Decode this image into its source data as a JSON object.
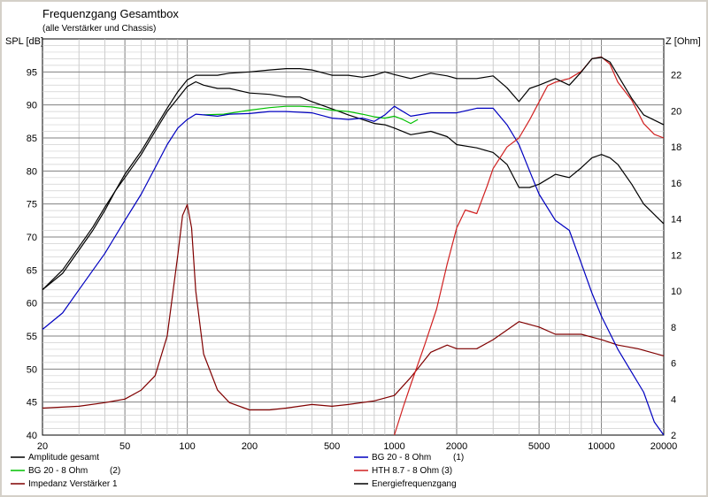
{
  "chart_data": {
    "type": "line",
    "title": "Frequenzgang Gesamtbox",
    "subtitle": "(alle Verstärker und Chassis)",
    "ylabel_left": "SPL [dB]",
    "ylabel_right": "Z [Ohm]",
    "xlim": [
      20,
      20000
    ],
    "x_scale": "log",
    "ylim_left": [
      40,
      100
    ],
    "ylim_right": [
      2,
      24
    ],
    "grid": true,
    "x_ticks": [
      20,
      50,
      100,
      200,
      500,
      1000,
      2000,
      5000,
      10000,
      20000
    ],
    "x_tick_labels": [
      "20",
      "50",
      "100",
      "200",
      "500",
      "1000",
      "2000",
      "5000",
      "10000",
      "20000"
    ],
    "y_ticks_left": [
      40,
      45,
      50,
      55,
      60,
      65,
      70,
      75,
      80,
      85,
      90,
      95
    ],
    "y_ticks_right": [
      2,
      4,
      6,
      8,
      10,
      12,
      14,
      16,
      18,
      20,
      22
    ],
    "legend_position": "bottom",
    "series": [
      {
        "name": "Amplitude gesamt",
        "legend_extra": "",
        "color": "#000000",
        "axis": "left",
        "x": [
          20,
          25,
          30,
          35,
          40,
          45,
          50,
          60,
          70,
          80,
          90,
          100,
          110,
          120,
          140,
          160,
          200,
          250,
          300,
          350,
          400,
          500,
          600,
          700,
          800,
          900,
          1000,
          1200,
          1500,
          1800,
          2000,
          2500,
          3000,
          3500,
          4000,
          4500,
          5000,
          6000,
          7000,
          8000,
          9000,
          10000,
          11000,
          12000,
          14000,
          16000,
          20000
        ],
        "y": [
          62,
          65,
          68.5,
          71.5,
          74.5,
          77,
          79,
          82.5,
          86,
          89,
          91,
          92.8,
          93.5,
          93,
          92.5,
          92.5,
          91.8,
          91.6,
          91.2,
          91.2,
          90.5,
          89.4,
          88.5,
          87.8,
          87.2,
          87,
          86.5,
          85.5,
          86,
          85.2,
          84,
          83.5,
          82.8,
          81,
          77.5,
          77.5,
          78,
          79.5,
          79,
          80.5,
          82,
          82.5,
          82,
          81,
          78,
          75,
          72
        ]
      },
      {
        "name": "BG 20 - 8 Ohm",
        "legend_extra": "(2)",
        "color": "#00c000",
        "axis": "left",
        "x": [
          120,
          150,
          200,
          250,
          300,
          350,
          400,
          500,
          600,
          700,
          800,
          900,
          1000,
          1100,
          1200,
          1300
        ],
        "y": [
          88.5,
          88.6,
          89.2,
          89.6,
          89.8,
          89.8,
          89.7,
          89.2,
          89.0,
          88.6,
          88.2,
          88.0,
          88.3,
          87.8,
          87.2,
          87.8
        ]
      },
      {
        "name": "Impedanz Verstärker 1",
        "legend_extra": "",
        "color": "#800000",
        "axis": "right",
        "x": [
          20,
          30,
          40,
          50,
          60,
          70,
          80,
          90,
          95,
          100,
          105,
          110,
          120,
          140,
          160,
          200,
          250,
          300,
          400,
          500,
          600,
          800,
          1000,
          1200,
          1500,
          1800,
          2000,
          2500,
          3000,
          4000,
          5000,
          6000,
          8000,
          10000,
          12000,
          15000,
          20000
        ],
        "y": [
          3.5,
          3.6,
          3.8,
          4.0,
          4.5,
          5.3,
          7.5,
          12.0,
          14.2,
          14.8,
          13.5,
          10.0,
          6.5,
          4.5,
          3.8,
          3.4,
          3.4,
          3.5,
          3.7,
          3.6,
          3.7,
          3.9,
          4.2,
          5.2,
          6.6,
          7.0,
          6.8,
          6.8,
          7.3,
          8.3,
          8.0,
          7.6,
          7.6,
          7.3,
          7.0,
          6.8,
          6.4
        ]
      },
      {
        "name": "BG 20 - 8 Ohm",
        "legend_extra": "(1)",
        "color": "#0000c0",
        "axis": "left",
        "x": [
          20,
          25,
          30,
          40,
          50,
          60,
          70,
          80,
          90,
          100,
          110,
          120,
          140,
          160,
          200,
          250,
          300,
          400,
          500,
          600,
          700,
          800,
          900,
          1000,
          1200,
          1500,
          2000,
          2500,
          3000,
          3500,
          4000,
          4500,
          5000,
          6000,
          7000,
          8000,
          9000,
          10000,
          12000,
          14000,
          16000,
          18000,
          20000
        ],
        "y": [
          56,
          58.5,
          62,
          67.5,
          72.5,
          76.5,
          80.5,
          84,
          86.5,
          87.8,
          88.6,
          88.5,
          88.3,
          88.6,
          88.7,
          89.0,
          89.0,
          88.8,
          88.0,
          87.8,
          88.0,
          87.5,
          88.5,
          89.8,
          88.3,
          88.8,
          88.8,
          89.5,
          89.5,
          87.0,
          84.0,
          80.0,
          76.5,
          72.5,
          71.0,
          66.0,
          61.5,
          58.0,
          53.0,
          49.5,
          46.5,
          42.0,
          40
        ]
      },
      {
        "name": "HTH 8.7 - 8 Ohm (3)",
        "legend_extra": "",
        "color": "#d02020",
        "axis": "right",
        "x": [
          1000,
          1100,
          1200,
          1400,
          1600,
          1800,
          2000,
          2200,
          2500,
          2800,
          3000,
          3500,
          4000,
          4500,
          5000,
          5500,
          6000,
          7000,
          8000,
          9000,
          10000,
          11000,
          12000,
          14000,
          16000,
          18000,
          20000
        ],
        "y": [
          2.0,
          3.5,
          4.8,
          7.0,
          9.0,
          11.5,
          13.5,
          14.5,
          14.3,
          15.8,
          16.8,
          18.0,
          18.5,
          19.5,
          20.5,
          21.4,
          21.6,
          21.8,
          22.2,
          22.9,
          23.0,
          22.6,
          21.6,
          20.6,
          19.3,
          18.7,
          18.5
        ]
      },
      {
        "name": "Energiefrequenzgang",
        "legend_extra": "",
        "color": "#000000",
        "axis": "left",
        "x": [
          20,
          25,
          30,
          35,
          40,
          45,
          50,
          60,
          70,
          80,
          90,
          100,
          110,
          120,
          140,
          160,
          200,
          250,
          300,
          350,
          400,
          500,
          600,
          700,
          800,
          900,
          1000,
          1200,
          1500,
          1800,
          2000,
          2500,
          3000,
          3500,
          4000,
          4500,
          5000,
          6000,
          7000,
          8000,
          9000,
          10000,
          11000,
          12000,
          14000,
          16000,
          20000
        ],
        "y": [
          62,
          64.5,
          68,
          71,
          74,
          77,
          79.5,
          83,
          86.5,
          89.5,
          92,
          93.8,
          94.5,
          94.5,
          94.5,
          94.8,
          95,
          95.3,
          95.5,
          95.5,
          95.3,
          94.5,
          94.5,
          94.2,
          94.5,
          95.0,
          94.6,
          94.0,
          94.8,
          94.4,
          94.0,
          94.0,
          94.4,
          92.6,
          90.5,
          92.5,
          93.0,
          94.0,
          93.0,
          95.0,
          97.0,
          97.2,
          96.5,
          94.5,
          91.0,
          88.5,
          87.0
        ]
      }
    ]
  }
}
